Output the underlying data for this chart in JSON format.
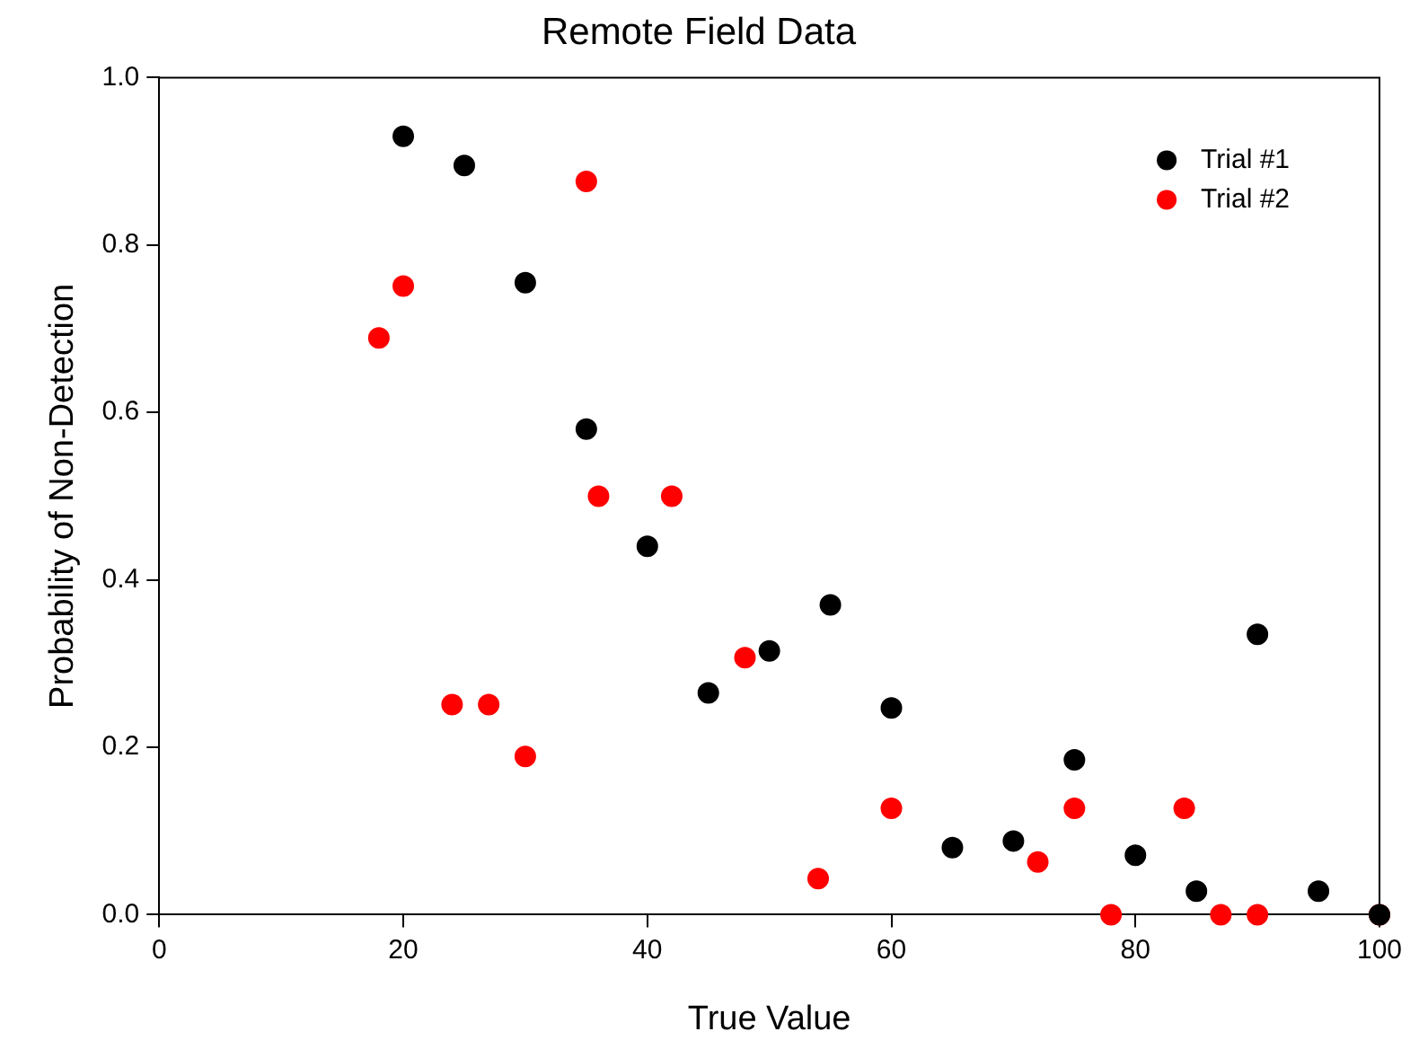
{
  "chart_data": {
    "type": "scatter",
    "title": "Remote Field Data",
    "xlabel": "True Value",
    "ylabel": "Probability of Non-Detection",
    "xlim": [
      0,
      100
    ],
    "xticks": [
      0,
      20,
      40,
      60,
      80,
      100
    ],
    "ylim": [
      0,
      1
    ],
    "yticks": [
      {
        "value": 0,
        "label": "0.0"
      },
      {
        "value": 0.2,
        "label": "0.2"
      },
      {
        "value": 0.4,
        "label": "0.4"
      },
      {
        "value": 0.6,
        "label": "0.6"
      },
      {
        "value": 0.8,
        "label": "0.8"
      },
      {
        "value": 1,
        "label": "1.0"
      }
    ],
    "grid": false,
    "legend": "top right",
    "marker": "circle",
    "series": [
      {
        "name": "Trial #1",
        "color": "#000000",
        "x": [
          20,
          25,
          30,
          35,
          40,
          45,
          50,
          55,
          60,
          65,
          70,
          75,
          80,
          85,
          90,
          95,
          100
        ],
        "values": [
          0.93,
          0.895,
          0.755,
          0.58,
          0.44,
          0.265,
          0.315,
          0.37,
          0.247,
          0.08,
          0.088,
          0.185,
          0.071,
          0.028,
          0.335,
          0.028,
          0
        ]
      },
      {
        "name": "Trial #2",
        "color": "#ff0000",
        "x": [
          18,
          20,
          24,
          27,
          30,
          35,
          36,
          42,
          48,
          54,
          60,
          72,
          75,
          78,
          84,
          87,
          90,
          100
        ],
        "values": [
          0.689,
          0.751,
          0.251,
          0.251,
          0.189,
          0.876,
          0.5,
          0.5,
          0.307,
          0.043,
          0.127,
          0.063,
          0.127,
          0,
          0.127,
          0,
          0,
          0
        ]
      }
    ]
  }
}
